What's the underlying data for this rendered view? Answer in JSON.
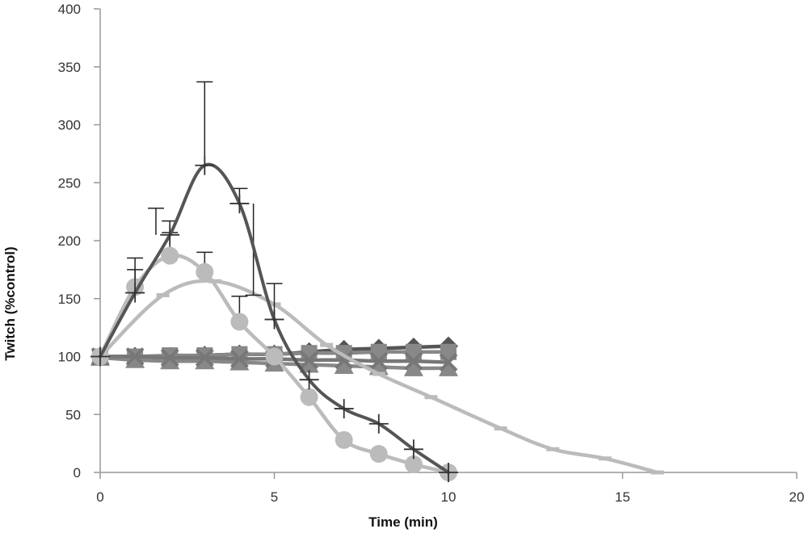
{
  "chart_data": {
    "type": "line",
    "xlabel": "Time (min)",
    "ylabel": "Twitch (%control)",
    "xlim": [
      0,
      20
    ],
    "ylim": [
      0,
      400
    ],
    "xticks": [
      0,
      5,
      10,
      15,
      20
    ],
    "yticks": [
      0,
      50,
      100,
      150,
      200,
      250,
      300,
      350,
      400
    ],
    "grid": false,
    "series": [
      {
        "marker": "plus",
        "color": "#555555",
        "errorbars": true,
        "points": [
          [
            0,
            100
          ],
          [
            1,
            155
          ],
          [
            2,
            205
          ],
          [
            3,
            265
          ],
          [
            4,
            232
          ],
          [
            5,
            132
          ],
          [
            6,
            80
          ],
          [
            7,
            55
          ],
          [
            8,
            42
          ],
          [
            9,
            20
          ],
          [
            10,
            0
          ]
        ],
        "errors": [
          [
            1,
            185
          ],
          [
            1.6,
            228
          ],
          [
            2,
            217
          ],
          [
            3,
            337
          ],
          [
            4,
            245
          ],
          [
            4.4,
            153
          ],
          [
            5,
            163
          ]
        ]
      },
      {
        "marker": "circle",
        "color": "#bbbbbb",
        "points": [
          [
            0,
            100
          ],
          [
            1,
            160
          ],
          [
            2,
            187
          ],
          [
            3,
            173
          ],
          [
            4,
            130
          ],
          [
            5,
            100
          ],
          [
            6,
            65
          ],
          [
            7,
            28
          ],
          [
            8,
            16
          ],
          [
            9,
            7
          ],
          [
            10,
            0
          ]
        ],
        "errors": [
          [
            1,
            175
          ],
          [
            2,
            207
          ],
          [
            3,
            190
          ],
          [
            4,
            152
          ]
        ]
      },
      {
        "marker": "dash",
        "color": "#bbbbbb",
        "points": [
          [
            0,
            100
          ],
          [
            1.8,
            153
          ],
          [
            3.3,
            165
          ],
          [
            5,
            145
          ],
          [
            6.5,
            110
          ],
          [
            8,
            85
          ],
          [
            9.5,
            65
          ],
          [
            11.5,
            38
          ],
          [
            13,
            20
          ],
          [
            14.5,
            12
          ],
          [
            16,
            0
          ]
        ]
      },
      {
        "marker": "diamond",
        "color": "#555555",
        "points": [
          [
            0,
            100
          ],
          [
            1,
            100
          ],
          [
            2,
            100
          ],
          [
            3,
            101
          ],
          [
            4,
            102
          ],
          [
            5,
            102
          ],
          [
            6,
            104
          ],
          [
            7,
            106
          ],
          [
            8,
            107
          ],
          [
            9,
            108
          ],
          [
            10,
            109
          ]
        ]
      },
      {
        "marker": "square",
        "color": "#888888",
        "points": [
          [
            0,
            100
          ],
          [
            1,
            100
          ],
          [
            2,
            101
          ],
          [
            3,
            101
          ],
          [
            4,
            102
          ],
          [
            5,
            102
          ],
          [
            6,
            103
          ],
          [
            7,
            103
          ],
          [
            8,
            104
          ],
          [
            9,
            104
          ],
          [
            10,
            104
          ]
        ]
      },
      {
        "marker": "triangle",
        "color": "#888888",
        "points": [
          [
            0,
            99
          ],
          [
            1,
            97
          ],
          [
            2,
            96
          ],
          [
            3,
            96
          ],
          [
            4,
            95
          ],
          [
            5,
            94
          ],
          [
            6,
            93
          ],
          [
            7,
            92
          ],
          [
            8,
            91
          ],
          [
            9,
            90
          ],
          [
            10,
            90
          ]
        ]
      },
      {
        "marker": "x",
        "color": "#777777",
        "points": [
          [
            0,
            100
          ],
          [
            1,
            100
          ],
          [
            2,
            99
          ],
          [
            3,
            99
          ],
          [
            4,
            98
          ],
          [
            5,
            98
          ],
          [
            6,
            97
          ],
          [
            7,
            97
          ],
          [
            8,
            96
          ],
          [
            9,
            96
          ],
          [
            10,
            95
          ]
        ]
      }
    ]
  }
}
